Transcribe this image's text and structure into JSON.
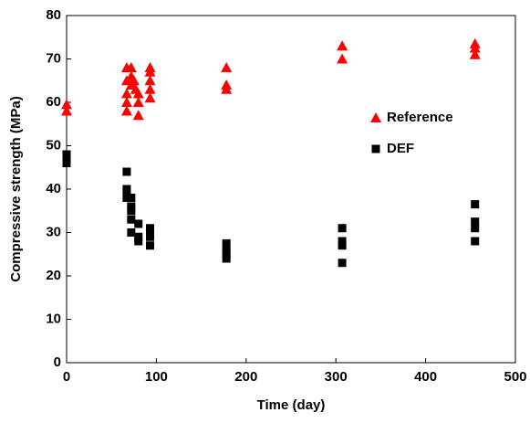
{
  "chart_data": {
    "type": "scatter",
    "x_label": "Time (day)",
    "y_label": "Compressive strength (MPa)",
    "xlim": [
      0,
      500
    ],
    "xticks": [
      0,
      100,
      200,
      300,
      400,
      500
    ],
    "ylim": [
      0,
      80
    ],
    "yticks": [
      0,
      10,
      20,
      30,
      40,
      50,
      60,
      70,
      80
    ],
    "grid": false,
    "legend": "right",
    "series": [
      {
        "name": "Reference",
        "color": "#ff0000",
        "marker": "triangle",
        "x": [
          0,
          0,
          67,
          67,
          67,
          67,
          67,
          72,
          72,
          72,
          75,
          77,
          80,
          80,
          80,
          93,
          93,
          93,
          93,
          93,
          178,
          178,
          178,
          307,
          307,
          455,
          455,
          455
        ],
        "values": [
          59.5,
          58,
          68,
          65,
          62,
          60,
          58,
          68,
          66,
          64,
          65,
          63,
          62,
          60,
          57,
          68,
          67,
          65,
          63,
          61,
          68,
          64,
          63,
          73,
          70,
          73.5,
          72.5,
          71
        ]
      },
      {
        "name": "DEF",
        "color": "#000000",
        "marker": "square",
        "x": [
          0,
          0,
          0,
          67,
          67,
          67,
          67,
          72,
          72,
          72,
          72,
          72,
          80,
          80,
          80,
          93,
          93,
          93,
          93,
          178,
          178,
          178,
          178,
          307,
          307,
          307,
          307,
          455,
          455,
          455,
          455
        ],
        "values": [
          48,
          47,
          46,
          44,
          40,
          39,
          38,
          38,
          36,
          35,
          33,
          30,
          32,
          29,
          28,
          31,
          30,
          29,
          27,
          27.5,
          26,
          25,
          24,
          31,
          28,
          27,
          23,
          36.5,
          32.5,
          31,
          28
        ]
      }
    ]
  }
}
